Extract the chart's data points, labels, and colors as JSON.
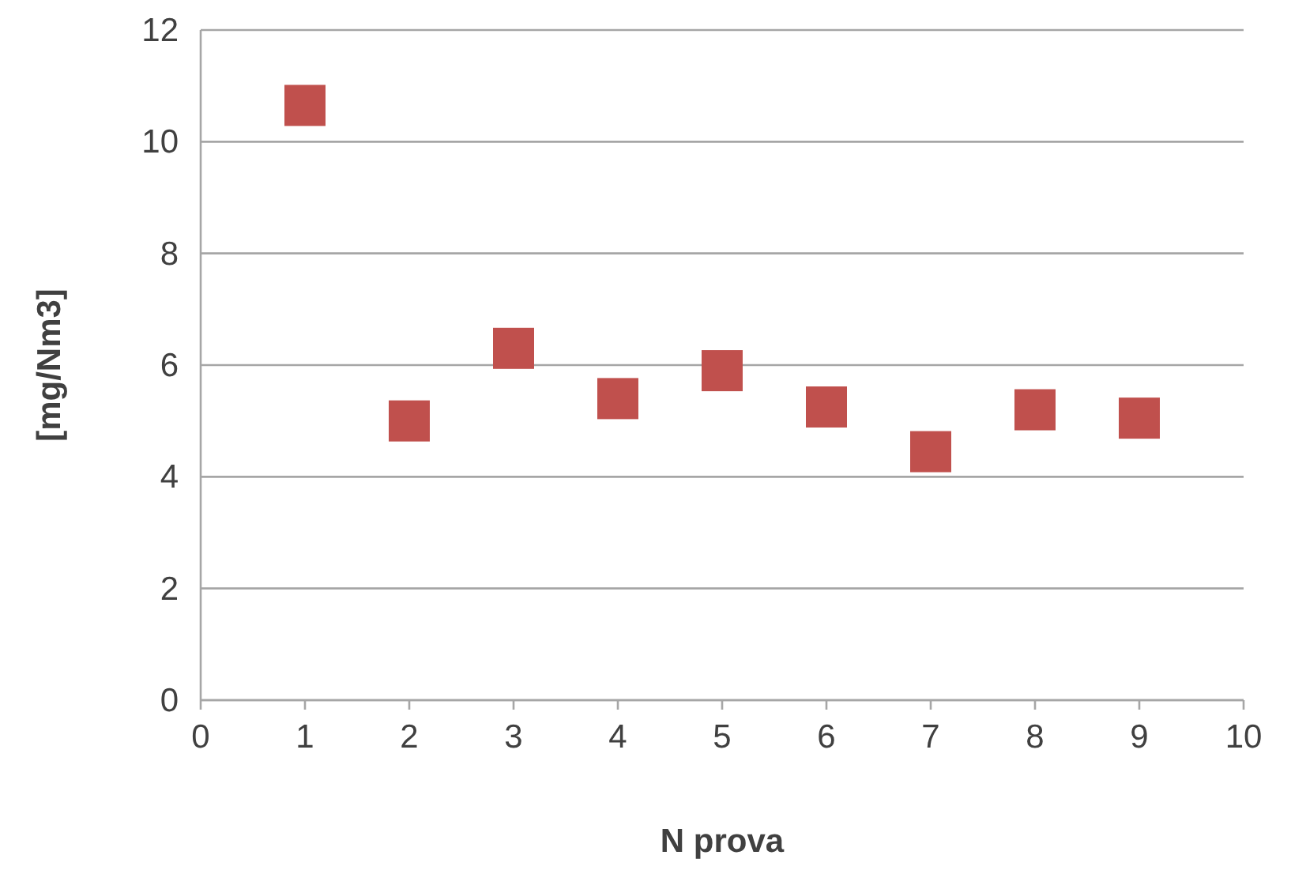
{
  "chart_data": {
    "type": "scatter",
    "xlabel": "N prova",
    "ylabel": "[mg/Nm3]",
    "x": [
      1,
      2,
      3,
      4,
      5,
      6,
      7,
      8,
      9
    ],
    "values": [
      10.65,
      5.0,
      6.3,
      5.4,
      5.9,
      5.25,
      4.45,
      5.2,
      5.05
    ],
    "color": "#c0504d",
    "marker": "square",
    "xlim": [
      0,
      10
    ],
    "xticks": [
      0,
      1,
      2,
      3,
      4,
      5,
      6,
      7,
      8,
      9,
      10
    ],
    "ylim": [
      0,
      12
    ],
    "yticks": [
      0,
      2,
      4,
      6,
      8,
      10,
      12
    ],
    "grid": "y"
  }
}
